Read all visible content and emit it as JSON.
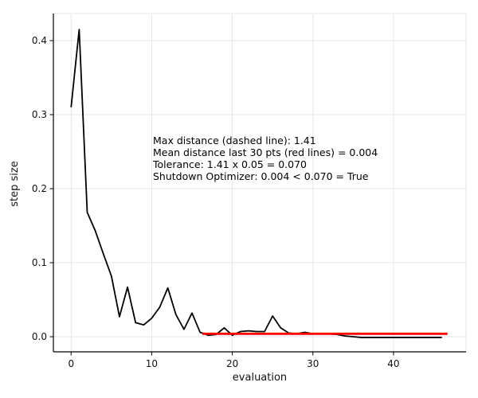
{
  "chart_data": {
    "type": "line",
    "title": "",
    "xlabel": "evaluation",
    "ylabel": "step size",
    "xlim": [
      -2.2,
      49.0
    ],
    "ylim": [
      -0.0204,
      0.4366
    ],
    "grid": true,
    "legend": "none",
    "x_tick_values": [
      0,
      10,
      20,
      30,
      40
    ],
    "x_tick_labels": [
      "0",
      "10",
      "20",
      "30",
      "40"
    ],
    "y_tick_values": [
      0.0,
      0.1,
      0.2,
      0.3,
      0.4
    ],
    "y_tick_labels": [
      "0.0",
      "0.1",
      "0.2",
      "0.3",
      "0.4"
    ],
    "series": [
      {
        "name": "step-size-curve",
        "color": "#000000",
        "width": 1.8,
        "x": [
          0,
          1,
          2,
          3,
          4,
          5,
          6,
          7,
          8,
          9,
          10,
          11,
          12,
          13,
          14,
          15,
          16,
          17,
          18,
          19,
          20,
          21,
          22,
          23,
          24,
          25,
          26,
          27,
          28,
          29,
          30,
          31,
          32,
          33,
          34,
          35,
          36,
          37,
          38,
          39,
          40,
          41,
          42,
          43,
          44,
          45,
          46
        ],
        "y": [
          0.31,
          0.415,
          0.168,
          0.143,
          0.112,
          0.082,
          0.027,
          0.067,
          0.019,
          0.016,
          0.025,
          0.04,
          0.066,
          0.03,
          0.01,
          0.032,
          0.006,
          0.002,
          0.003,
          0.012,
          0.002,
          0.007,
          0.008,
          0.007,
          0.007,
          0.028,
          0.012,
          0.005,
          0.004,
          0.006,
          0.004,
          0.004,
          0.004,
          0.003,
          0.001,
          0.0,
          -0.001,
          -0.001,
          -0.001,
          -0.001,
          -0.001,
          -0.001,
          -0.001,
          -0.001,
          -0.001,
          -0.001,
          -0.001
        ]
      },
      {
        "name": "mean-distance-red-line",
        "color": "#ff0000",
        "width": 2.8,
        "x": [
          16.3,
          46.7
        ],
        "y": [
          0.004,
          0.004
        ]
      }
    ],
    "annotation": {
      "lines": [
        "Max distance (dashed line): 1.41",
        "Mean distance last 30 pts (red lines) = 0.004",
        "Tolerance: 1.41 x 0.05 = 0.070",
        "Shutdown Optimizer: 0.004 < 0.070 = True"
      ]
    },
    "stats": {
      "max_distance": "1.41",
      "mean_distance_last_30": "0.004",
      "tolerance": "0.070",
      "shutdown_optimizer": "True"
    }
  },
  "colors": {
    "curve": "#000000",
    "mean_line": "#ff0000",
    "grid": "#e6e6e6",
    "spine": "#000000",
    "text": "#000000",
    "background": "#ffffff"
  }
}
